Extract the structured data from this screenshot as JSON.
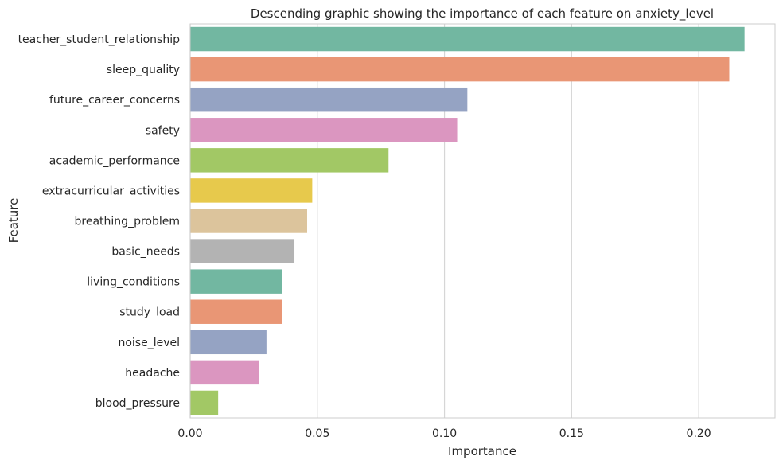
{
  "chart_data": {
    "type": "bar",
    "orientation": "horizontal",
    "title": "Descending graphic showing the importance of each feature on anxiety_level",
    "xlabel": "Importance",
    "ylabel": "Feature",
    "xlim": [
      0,
      0.23
    ],
    "xticks": [
      0.0,
      0.05,
      0.1,
      0.15,
      0.2
    ],
    "xtick_labels": [
      "0.00",
      "0.05",
      "0.10",
      "0.15",
      "0.20"
    ],
    "grid": "vertical",
    "categories": [
      "teacher_student_relationship",
      "sleep_quality",
      "future_career_concerns",
      "safety",
      "academic_performance",
      "extracurricular_activities",
      "breathing_problem",
      "basic_needs",
      "living_conditions",
      "study_load",
      "noise_level",
      "headache",
      "blood_pressure"
    ],
    "values": [
      0.218,
      0.212,
      0.109,
      0.105,
      0.078,
      0.048,
      0.046,
      0.041,
      0.036,
      0.036,
      0.03,
      0.027,
      0.011
    ],
    "colors": [
      "#72b7a1",
      "#e99675",
      "#95a3c3",
      "#db96c0",
      "#a2c865",
      "#e7c94c",
      "#dcc49c",
      "#b3b3b3",
      "#72b7a1",
      "#e99675",
      "#95a3c3",
      "#db96c0",
      "#a2c865"
    ]
  }
}
